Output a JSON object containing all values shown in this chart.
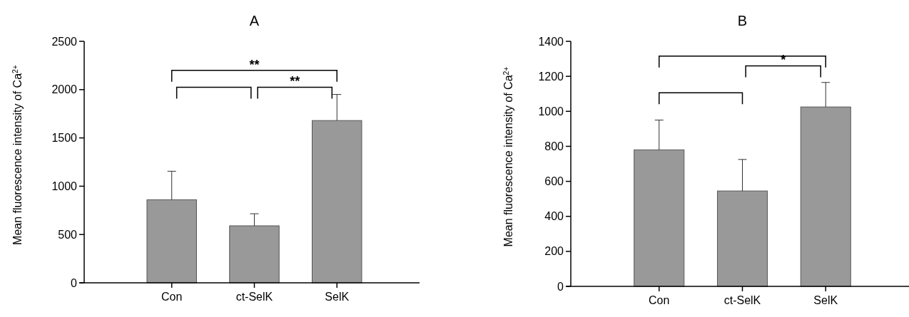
{
  "chart_data": [
    {
      "type": "bar",
      "title": "A",
      "ylabel": "Mean fluorescence intensity of Ca$^{2+}$",
      "categories": [
        "Con",
        "ct-SelK",
        "SelK"
      ],
      "values": [
        860,
        590,
        1680
      ],
      "errors": [
        [
          860,
          1155
        ],
        [
          590,
          715
        ],
        [
          1680,
          1950
        ]
      ],
      "color": "#999999",
      "ylim": [
        0,
        2500
      ],
      "yticks": [
        0,
        500,
        1000,
        1500,
        2000,
        2500
      ],
      "grid": false,
      "annotations": [
        "**",
        "**"
      ]
    },
    {
      "type": "bar",
      "title": "B",
      "ylabel": "Mean fluorescence intensity of Ca$^{2+}$",
      "categories": [
        "Con",
        "ct-SelK",
        "SelK"
      ],
      "values": [
        780,
        545,
        1025
      ],
      "errors": [
        [
          780,
          950
        ],
        [
          545,
          725
        ],
        [
          1025,
          1165
        ]
      ],
      "color": "#999999",
      "ylim": [
        0,
        1400
      ],
      "yticks": [
        0,
        200,
        400,
        600,
        800,
        1000,
        1200,
        1400
      ],
      "grid": false,
      "annotations": [
        "*"
      ]
    }
  ]
}
